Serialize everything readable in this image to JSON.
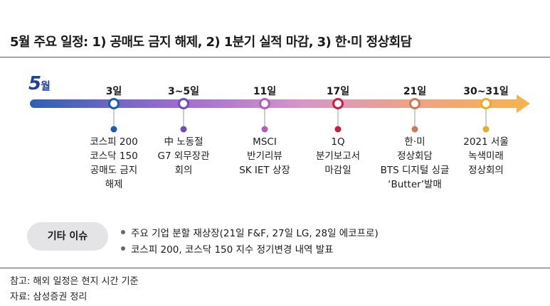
{
  "title": "5월 주요 일정: 1) 공매도 금지 해제, 2) 1분기 실적 마감, 3) 한·미 정상회담",
  "month": {
    "number": "5",
    "suffix": "월"
  },
  "events": [
    {
      "date": "3일",
      "lines": [
        "코스피 200",
        "코스닥 150",
        "공매도 금지",
        "해제"
      ],
      "color": "#1f5cab"
    },
    {
      "date": "3~5일",
      "lines": [
        "中 노동절",
        "G7 외무장관",
        "회의"
      ],
      "color": "#6e4fb3"
    },
    {
      "date": "11일",
      "lines": [
        "MSCI",
        "반기리뷰",
        "SK IET 상장"
      ],
      "color": "#b25fba"
    },
    {
      "date": "17일",
      "lines": [
        "1Q",
        "분기보고서",
        "마감일"
      ],
      "color": "#c51f48"
    },
    {
      "date": "21일",
      "lines": [
        "한·미",
        "정상회담",
        "BTS 디지털 싱글",
        "‘Butter’발매"
      ],
      "color": "#c97b55"
    },
    {
      "date": "30~31일",
      "lines": [
        "2021 서울",
        "녹색미래",
        "정상회의"
      ],
      "color": "#e3b022"
    }
  ],
  "other": {
    "label": "기타 이슈",
    "items": [
      "주요 기업 분할 재상장(21일 F&F, 27일 LG, 28일 에코프로)",
      "코스피 200, 코스닥 150 지수 정기변경 내역 발표"
    ]
  },
  "notes": [
    "참고: 해외 일정은 현지 시간 기준",
    "자료: 삼성증권 정리"
  ]
}
